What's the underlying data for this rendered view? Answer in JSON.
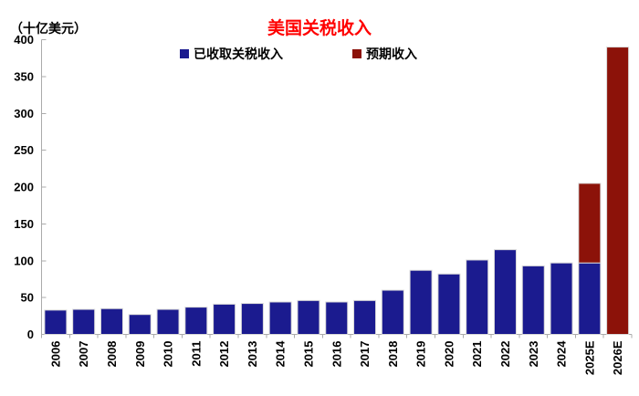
{
  "header": {
    "unit_label": "（十亿美元）",
    "title": "美国关税收入",
    "title_color": "#FF0000"
  },
  "legend": {
    "items": [
      {
        "label": "已收取关税收入",
        "color": "#1B1B8F",
        "icon": "square-swatch-icon"
      },
      {
        "label": "预期收入",
        "color": "#8C1209",
        "icon": "square-swatch-icon"
      }
    ]
  },
  "chart_data": {
    "type": "bar",
    "stacked": true,
    "title": "美国关税收入",
    "ylabel": "（十亿美元）",
    "categories": [
      "2006",
      "2007",
      "2008",
      "2009",
      "2010",
      "2011",
      "2012",
      "2013",
      "2014",
      "2015",
      "2016",
      "2017",
      "2018",
      "2019",
      "2020",
      "2021",
      "2022",
      "2023",
      "2024",
      "2025E",
      "2026E"
    ],
    "series": [
      {
        "name": "已收取关税收入",
        "color": "#1B1B8F",
        "values": [
          33,
          34,
          35,
          27,
          34,
          37,
          41,
          42,
          44,
          46,
          44,
          46,
          60,
          87,
          82,
          101,
          115,
          93,
          97,
          97,
          0
        ]
      },
      {
        "name": "预期收入",
        "color": "#8C1209",
        "values": [
          0,
          0,
          0,
          0,
          0,
          0,
          0,
          0,
          0,
          0,
          0,
          0,
          0,
          0,
          0,
          0,
          0,
          0,
          0,
          108,
          390
        ]
      }
    ],
    "ylim": [
      0,
      400
    ],
    "ytick_step": 50,
    "ytick_labels": [
      "0",
      "50",
      "100",
      "150",
      "200",
      "250",
      "300",
      "350",
      "400"
    ],
    "grid": false,
    "legend_position": "top-center",
    "axis_color": "#ABABAB",
    "bar_outline_color": "#D9D9D9"
  }
}
